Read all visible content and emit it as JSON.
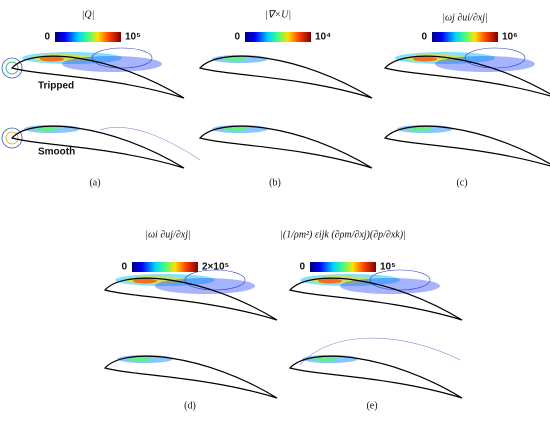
{
  "panels": [
    {
      "label": "(a)",
      "colorbar": {
        "title": "|Q|",
        "min": "0",
        "max": "10⁵"
      },
      "annotations": [
        "Tripped",
        "Smooth"
      ]
    },
    {
      "label": "(b)",
      "colorbar": {
        "title": "|∇×U|",
        "min": "0",
        "max": "10⁴"
      }
    },
    {
      "label": "(c)",
      "colorbar": {
        "title": "|ωj ∂ui/∂xj|",
        "min": "0",
        "max": "10⁶"
      }
    },
    {
      "label": "(d)",
      "colorbar": {
        "title": "|ωi ∂uj/∂xj|",
        "min": "0",
        "max": "2×10⁵"
      }
    },
    {
      "label": "(e)",
      "colorbar": {
        "title": "|(1/ρm²) εijk (∂ρm/∂xj)(∂p/∂xk)|",
        "min": "0",
        "max": "10⁵"
      }
    }
  ]
}
